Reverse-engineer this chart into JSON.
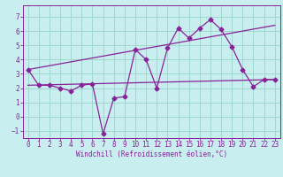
{
  "title": "",
  "xlabel": "Windchill (Refroidissement éolien,°C)",
  "background_color": "#c8eef0",
  "grid_color": "#a0d8cc",
  "line_color": "#882299",
  "xlim": [
    -0.5,
    23.5
  ],
  "ylim": [
    -1.5,
    7.8
  ],
  "yticks": [
    -1,
    0,
    1,
    2,
    3,
    4,
    5,
    6,
    7
  ],
  "xticks": [
    0,
    1,
    2,
    3,
    4,
    5,
    6,
    7,
    8,
    9,
    10,
    11,
    12,
    13,
    14,
    15,
    16,
    17,
    18,
    19,
    20,
    21,
    22,
    23
  ],
  "series1_x": [
    0,
    1,
    2,
    3,
    4,
    5,
    6,
    7,
    8,
    9,
    10,
    11,
    12,
    13,
    14,
    15,
    16,
    17,
    18,
    19,
    20,
    21,
    22,
    23
  ],
  "series1_y": [
    3.3,
    2.2,
    2.2,
    2.0,
    1.8,
    2.2,
    2.3,
    -1.2,
    1.3,
    1.4,
    4.7,
    4.0,
    2.0,
    4.8,
    6.2,
    5.5,
    6.2,
    6.8,
    6.1,
    4.9,
    3.3,
    2.1,
    2.6,
    2.6
  ],
  "series2_x": [
    0,
    23
  ],
  "series2_y": [
    2.2,
    2.6
  ],
  "series3_x": [
    0,
    23
  ],
  "series3_y": [
    3.3,
    6.4
  ],
  "marker": "D",
  "markersize": 2.5,
  "linewidth": 0.9,
  "tick_fontsize": 5.5,
  "xlabel_fontsize": 5.5
}
